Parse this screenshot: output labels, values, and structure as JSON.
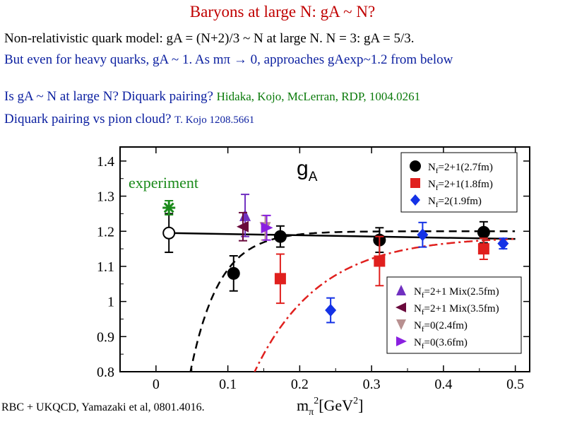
{
  "slide": {
    "title": "Baryons at large N: gA ~ N?",
    "line1": "Non-relativistic quark model: gA = (N+2)/3 ~ N at large N.  N = 3: gA = 5/3.",
    "line2": "But even for heavy quarks, gA ~ 1.  As mπ → 0, approaches gAexp~1.2 from below",
    "line3": "Is gA ~ N at large N?  Diquark pairing?",
    "line3_ref": "Hidaka, Kojo, McLerran, RDP, 1004.0261",
    "line4": "Diquark pairing vs  pion cloud?",
    "line4_ref": "T. Kojo 1208.5661",
    "credit": "RBC + UKQCD, Yamazaki et al, 0801.4016."
  },
  "colors": {
    "title": "#c00000",
    "blue_text": "#0b1fa0",
    "ref_green": "#0a7a0a",
    "black": "#000000",
    "red": "#e0201e",
    "blue": "#1432e6",
    "purple": "#7030c0",
    "maroon": "#6a0a3c",
    "rose": "#b89090",
    "violet": "#8a20e0",
    "green": "#1a8a1a"
  },
  "chart_data": {
    "type": "scatter",
    "title": "gA",
    "xlabel": "mπ²[GeV²]",
    "ylabel": "",
    "xlim": [
      -0.05,
      0.52
    ],
    "ylim": [
      0.8,
      1.44
    ],
    "x_ticks": [
      0,
      0.1,
      0.2,
      0.3,
      0.4,
      0.5
    ],
    "x_tick_labels": [
      "0",
      "0.1",
      "0.2",
      "0.3",
      "0.4",
      "0.5"
    ],
    "y_ticks": [
      0.8,
      0.9,
      1.0,
      1.1,
      1.2,
      1.3,
      1.4
    ],
    "y_tick_labels": [
      "0.8",
      "0.9",
      "1",
      "1.1",
      "1.2",
      "1.3",
      "1.4"
    ],
    "annotation": "experiment",
    "legend_top": [
      "Nf=2+1(2.7fm)",
      "Nf=2+1(1.8fm)",
      "Nf=2(1.9fm)"
    ],
    "legend_bottom": [
      "Nf=2+1 Mix(2.5fm)",
      "Nf=2+1 Mix(3.5fm)",
      "Nf=0(2.4fm)",
      "Nf=0(3.6fm)"
    ],
    "legend_placement": [
      "top-right",
      "bottom-right"
    ],
    "series": [
      {
        "name": "Nf=2+1(2.7fm)",
        "marker": "circle",
        "color": "#000000",
        "points": [
          {
            "x": 0.108,
            "y": 1.08,
            "err": 0.05
          },
          {
            "x": 0.173,
            "y": 1.185,
            "err": 0.03
          },
          {
            "x": 0.311,
            "y": 1.175,
            "err": 0.035
          },
          {
            "x": 0.456,
            "y": 1.197,
            "err": 0.03
          }
        ]
      },
      {
        "name": "Nf=2+1(1.8fm)",
        "marker": "square",
        "color": "#e0201e",
        "points": [
          {
            "x": 0.173,
            "y": 1.065,
            "err": 0.07
          },
          {
            "x": 0.311,
            "y": 1.115,
            "err": 0.07
          },
          {
            "x": 0.456,
            "y": 1.15,
            "err": 0.03
          }
        ]
      },
      {
        "name": "Nf=2(1.9fm)",
        "marker": "diamond",
        "color": "#1432e6",
        "points": [
          {
            "x": 0.243,
            "y": 0.975,
            "err": 0.035
          },
          {
            "x": 0.371,
            "y": 1.19,
            "err": 0.035
          },
          {
            "x": 0.483,
            "y": 1.165,
            "err": 0.015
          }
        ]
      },
      {
        "name": "Nf=2+1 Mix(2.5fm)",
        "marker": "triangle-up",
        "color": "#7030c0",
        "points": [
          {
            "x": 0.124,
            "y": 1.245,
            "err": 0.06
          }
        ]
      },
      {
        "name": "Nf=2+1 Mix(3.5fm)",
        "marker": "triangle-left",
        "color": "#6a0a3c",
        "points": [
          {
            "x": 0.121,
            "y": 1.213,
            "err": 0.04
          }
        ]
      },
      {
        "name": "Nf=0(2.4fm)",
        "marker": "triangle-down",
        "color": "#b89090",
        "points": [
          {
            "x": 0.152,
            "y": 1.21,
            "err": 0.035
          }
        ]
      },
      {
        "name": "Nf=0(3.6fm)",
        "marker": "triangle-right",
        "color": "#8a20e0",
        "points": [
          {
            "x": 0.154,
            "y": 1.21,
            "err": 0.035
          }
        ]
      },
      {
        "name": "",
        "marker": "open-circle",
        "color": "#000000",
        "points": [
          {
            "x": 0.018,
            "y": 1.195,
            "err": 0.055
          }
        ]
      },
      {
        "name": "experiment",
        "marker": "star",
        "color": "#1a8a1a",
        "points": [
          {
            "x": 0.018,
            "y": 1.267,
            "err": 0.02
          }
        ]
      }
    ],
    "fits": [
      {
        "style": "solid",
        "color": "#000000",
        "from": [
          0.018,
          1.195
        ],
        "to": [
          0.5,
          1.178
        ]
      },
      {
        "style": "dashed",
        "color": "#000000",
        "asymptote": 1.2,
        "x0": 0.047,
        "scale": 0.04
      },
      {
        "style": "dashdot",
        "color": "#e0201e",
        "asymptote": 1.185,
        "x0": 0.135,
        "scale": 0.09
      }
    ]
  }
}
